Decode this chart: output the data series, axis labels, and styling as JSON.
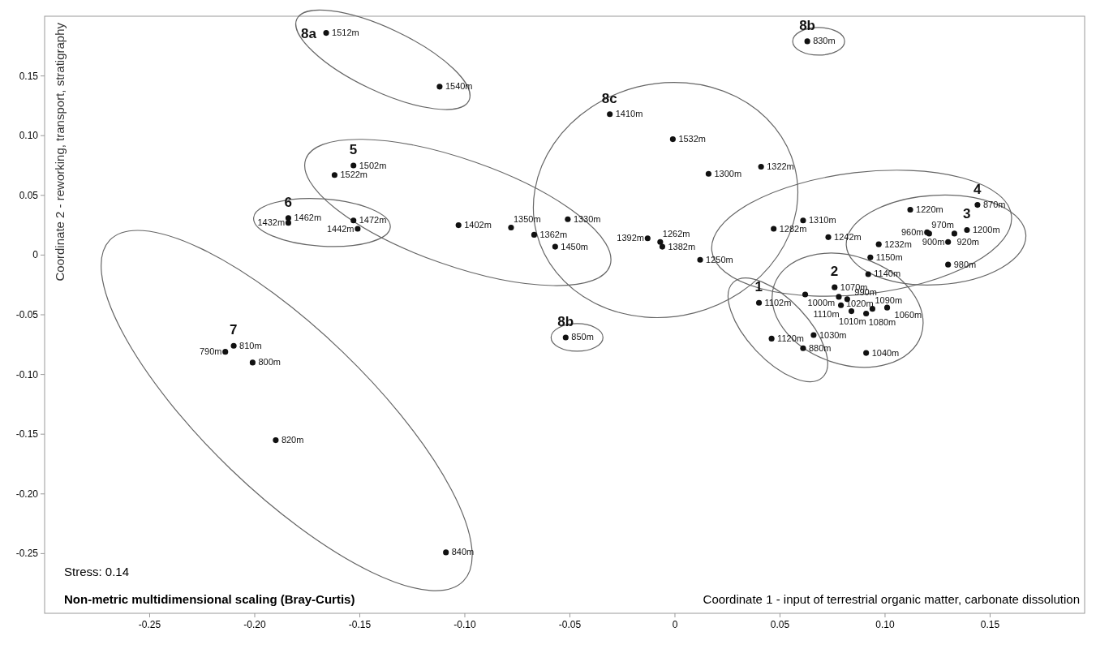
{
  "chart_data": {
    "type": "scatter",
    "xlabel": "Coordinate 1 - input of terrestrial organic matter, carbonate dissolution",
    "ylabel": "Coordinate 2 - reworking, transport, stratigraphy",
    "xlim": [
      -0.3,
      0.195
    ],
    "ylim": [
      -0.3,
      0.2
    ],
    "xticks": [
      -0.25,
      {
        "value": -0.2,
        "label": "-0.20"
      },
      -0.15,
      {
        "value": -0.1,
        "label": "-0.10"
      },
      -0.05,
      0,
      0.05,
      {
        "value": 0.1,
        "label": "0.10"
      },
      0.15
    ],
    "yticks": [
      -0.25,
      {
        "value": -0.2,
        "label": "-0.20"
      },
      -0.15,
      {
        "value": -0.1,
        "label": "-0.10"
      },
      -0.05,
      0,
      0.05,
      {
        "value": 0.1,
        "label": "0.10"
      },
      0.15
    ],
    "marker": "circle",
    "grid": false,
    "legend": false,
    "annotations": [
      "Stress: 0.14",
      "Non-metric multidimensional scaling (Bray-Curtis)",
      {
        "text": "1512m",
        "x": -0.166,
        "y": 0.186
      },
      {
        "text": "1540m",
        "x": -0.112,
        "y": 0.141
      },
      {
        "text": "830m",
        "x": 0.063,
        "y": 0.179
      },
      {
        "text": "1410m",
        "x": -0.031,
        "y": 0.118
      },
      {
        "text": "1532m",
        "x": -0.001,
        "y": 0.097
      },
      {
        "text": "1300m",
        "x": 0.016,
        "y": 0.068
      },
      {
        "text": "1322m",
        "x": 0.041,
        "y": 0.074
      },
      {
        "text": "1392m",
        "x": -0.013,
        "y": 0.014
      },
      {
        "text": "1262m",
        "x": -0.007,
        "y": 0.011
      },
      {
        "text": "1382m",
        "x": -0.006,
        "y": 0.007
      },
      {
        "text": "1250m",
        "x": 0.012,
        "y": -0.004
      },
      {
        "text": "1330m",
        "x": -0.051,
        "y": 0.03
      },
      {
        "text": "1502m",
        "x": -0.153,
        "y": 0.075
      },
      {
        "text": "1522m",
        "x": -0.162,
        "y": 0.067
      },
      {
        "text": "1402m",
        "x": -0.103,
        "y": 0.025
      },
      {
        "text": "1350m",
        "x": -0.078,
        "y": 0.023
      },
      {
        "text": "1362m",
        "x": -0.067,
        "y": 0.017
      },
      {
        "text": "1450m",
        "x": -0.057,
        "y": 0.007
      },
      {
        "text": "1462m",
        "x": -0.184,
        "y": 0.031
      },
      {
        "text": "1432m",
        "x": -0.184,
        "y": 0.027
      },
      {
        "text": "1472m",
        "x": -0.153,
        "y": 0.029
      },
      {
        "text": "1442m",
        "x": -0.151,
        "y": 0.022
      },
      {
        "text": "1282m",
        "x": 0.047,
        "y": 0.022
      },
      {
        "text": "1310m",
        "x": 0.061,
        "y": 0.029
      },
      {
        "text": "1242m",
        "x": 0.073,
        "y": 0.015
      },
      {
        "text": "1220m",
        "x": 0.112,
        "y": 0.038
      },
      {
        "text": "870m",
        "x": 0.144,
        "y": 0.042
      },
      {
        "text": "1150m",
        "x": 0.093,
        "y": -0.002
      },
      {
        "text": "1140m",
        "x": 0.092,
        "y": -0.016
      },
      {
        "text": "1232m",
        "x": 0.097,
        "y": 0.009
      },
      {
        "text": "960m",
        "x": 0.12,
        "y": 0.019
      },
      {
        "text": "970m",
        "x": 0.121,
        "y": 0.018
      },
      {
        "text": "920m",
        "x": 0.133,
        "y": 0.018
      },
      {
        "text": "1200m",
        "x": 0.139,
        "y": 0.021
      },
      {
        "text": "900m",
        "x": 0.13,
        "y": 0.011
      },
      {
        "text": "980m",
        "x": 0.13,
        "y": -0.008
      },
      {
        "text": "1102m",
        "x": 0.04,
        "y": -0.04
      },
      {
        "text": "1120m",
        "x": 0.046,
        "y": -0.07
      },
      {
        "text": "880m",
        "x": 0.061,
        "y": -0.078
      },
      {
        "text": "1000m",
        "x": 0.062,
        "y": -0.033
      },
      {
        "text": "1070m",
        "x": 0.076,
        "y": -0.027
      },
      {
        "text": "1020m",
        "x": 0.078,
        "y": -0.035
      },
      {
        "text": "990m",
        "x": 0.082,
        "y": -0.037
      },
      {
        "text": "1110m",
        "x": 0.079,
        "y": -0.042
      },
      {
        "text": "1010m",
        "x": 0.084,
        "y": -0.047
      },
      {
        "text": "1080m",
        "x": 0.091,
        "y": -0.049
      },
      {
        "text": "1090m",
        "x": 0.094,
        "y": -0.045
      },
      {
        "text": "1060m",
        "x": 0.101,
        "y": -0.044
      },
      {
        "text": "1030m",
        "x": 0.066,
        "y": -0.067
      },
      {
        "text": "1040m",
        "x": 0.091,
        "y": -0.082
      },
      {
        "text": "850m",
        "x": -0.052,
        "y": -0.069
      },
      {
        "text": "810m",
        "x": -0.21,
        "y": -0.076
      },
      {
        "text": "790m",
        "x": -0.214,
        "y": -0.081
      },
      {
        "text": "800m",
        "x": -0.201,
        "y": -0.09
      },
      {
        "text": "820m",
        "x": -0.19,
        "y": -0.155
      },
      {
        "text": "840m",
        "x": -0.109,
        "y": -0.249
      }
    ],
    "series": [
      {
        "name": "8a",
        "color": "#111111",
        "x": [
          -0.166,
          -0.112
        ],
        "values": [
          0.186,
          0.141
        ]
      },
      {
        "name": "8b",
        "color": "#111111",
        "x": [
          0.063
        ],
        "values": [
          0.179
        ]
      },
      {
        "name": "8c",
        "color": "#111111",
        "x": [
          -0.031,
          -0.001,
          0.016,
          0.041,
          -0.013,
          -0.007,
          -0.006,
          0.012,
          -0.051
        ],
        "values": [
          0.118,
          0.097,
          0.068,
          0.074,
          0.014,
          0.011,
          0.007,
          -0.004,
          0.03
        ]
      },
      {
        "name": "5",
        "color": "#111111",
        "x": [
          -0.153,
          -0.162,
          -0.103,
          -0.078,
          -0.067,
          -0.057
        ],
        "values": [
          0.075,
          0.067,
          0.025,
          0.023,
          0.017,
          0.007
        ]
      },
      {
        "name": "6",
        "color": "#111111",
        "x": [
          -0.184,
          -0.184,
          -0.153,
          -0.151
        ],
        "values": [
          0.031,
          0.027,
          0.029,
          0.022
        ]
      },
      {
        "name": "4",
        "color": "#111111",
        "x": [
          0.047,
          0.061,
          0.073,
          0.112,
          0.144,
          0.093,
          0.092
        ],
        "values": [
          0.022,
          0.029,
          0.015,
          0.038,
          0.042,
          -0.002,
          -0.016
        ]
      },
      {
        "name": "3",
        "color": "#111111",
        "x": [
          0.097,
          0.12,
          0.121,
          0.133,
          0.139,
          0.13,
          0.13
        ],
        "values": [
          0.009,
          0.019,
          0.018,
          0.018,
          0.021,
          0.011,
          -0.008
        ]
      },
      {
        "name": "1",
        "color": "#111111",
        "x": [
          0.04,
          0.046,
          0.061
        ],
        "values": [
          -0.04,
          -0.07,
          -0.078
        ]
      },
      {
        "name": "2",
        "color": "#111111",
        "x": [
          0.062,
          0.076,
          0.078,
          0.082,
          0.079,
          0.084,
          0.091,
          0.094,
          0.101,
          0.066,
          0.091
        ],
        "values": [
          -0.033,
          -0.027,
          -0.035,
          -0.037,
          -0.042,
          -0.047,
          -0.049,
          -0.045,
          -0.044,
          -0.067,
          -0.082
        ]
      },
      {
        "name": "8b",
        "color": "#111111",
        "x": [
          -0.052
        ],
        "values": [
          -0.069
        ]
      },
      {
        "name": "7",
        "color": "#111111",
        "x": [
          -0.21,
          -0.214,
          -0.201,
          -0.19,
          -0.109
        ],
        "values": [
          -0.076,
          -0.081,
          -0.09,
          -0.155,
          -0.249
        ]
      }
    ]
  }
}
